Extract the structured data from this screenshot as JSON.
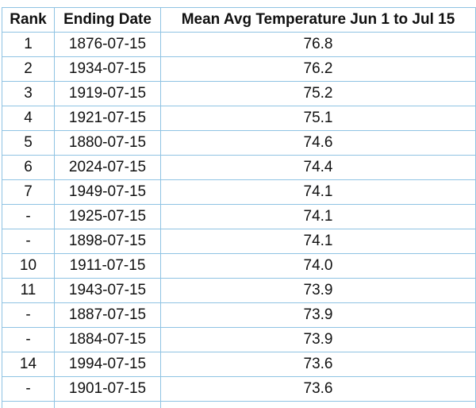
{
  "table": {
    "headers": [
      "Rank",
      "Ending Date",
      "Mean Avg Temperature Jun 1 to Jul 15"
    ],
    "rows": [
      [
        "1",
        "1876-07-15",
        "76.8"
      ],
      [
        "2",
        "1934-07-15",
        "76.2"
      ],
      [
        "3",
        "1919-07-15",
        "75.2"
      ],
      [
        "4",
        "1921-07-15",
        "75.1"
      ],
      [
        "5",
        "1880-07-15",
        "74.6"
      ],
      [
        "6",
        "2024-07-15",
        "74.4"
      ],
      [
        "7",
        "1949-07-15",
        "74.1"
      ],
      [
        "-",
        "1925-07-15",
        "74.1"
      ],
      [
        "-",
        "1898-07-15",
        "74.1"
      ],
      [
        "10",
        "1911-07-15",
        "74.0"
      ],
      [
        "11",
        "1943-07-15",
        "73.9"
      ],
      [
        "-",
        "1887-07-15",
        "73.9"
      ],
      [
        "-",
        "1884-07-15",
        "73.9"
      ],
      [
        "14",
        "1994-07-15",
        "73.6"
      ],
      [
        "-",
        "1901-07-15",
        "73.6"
      ]
    ]
  }
}
